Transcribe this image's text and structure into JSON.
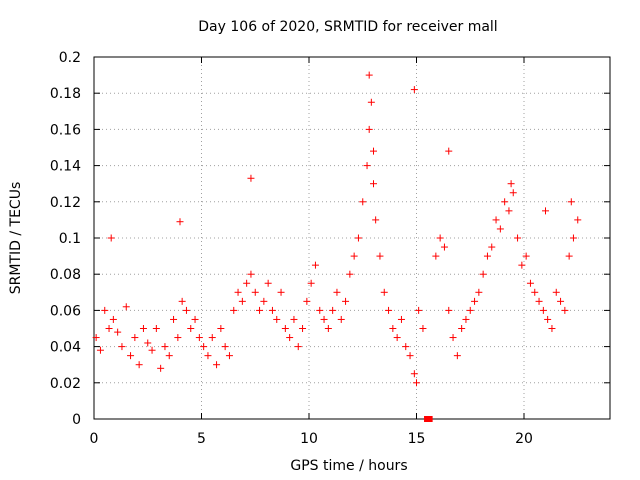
{
  "chart_data": {
    "type": "scatter",
    "title": "Day 106 of 2020, SRMTID for receiver mall",
    "xlabel": "GPS time / hours",
    "ylabel": "SRMTID / TECUs",
    "xlim": [
      0,
      24
    ],
    "ylim": [
      0,
      0.2
    ],
    "x_ticks": [
      0,
      5,
      10,
      15,
      20
    ],
    "x_tick_labels": [
      "0",
      "5",
      "10",
      "15",
      "20"
    ],
    "y_ticks": [
      0,
      0.02,
      0.04,
      0.06,
      0.08,
      0.1,
      0.12,
      0.14,
      0.16,
      0.18,
      0.2
    ],
    "y_tick_labels": [
      "0",
      "0.02",
      "0.04",
      "0.06",
      "0.08",
      "0.1",
      "0.12",
      "0.14",
      "0.16",
      "0.18",
      "0.2"
    ],
    "grid": true,
    "marker": "+",
    "series_color": "#ff0000",
    "zero_segment": {
      "x_start": 15.35,
      "x_end": 15.75,
      "y": 0
    },
    "series": [
      {
        "name": "SRMTID",
        "x": [
          0.1,
          0.3,
          0.5,
          0.7,
          0.9,
          1.1,
          1.3,
          1.5,
          1.7,
          1.9,
          2.1,
          2.3,
          2.5,
          2.7,
          2.9,
          3.1,
          3.3,
          3.5,
          3.7,
          3.9,
          4.1,
          4.3,
          4.5,
          4.7,
          4.9,
          5.1,
          5.3,
          5.5,
          5.7,
          5.9,
          6.1,
          6.3,
          6.5,
          6.7,
          6.9,
          7.1,
          7.3,
          7.5,
          7.7,
          7.9,
          8.1,
          8.3,
          8.5,
          8.7,
          8.9,
          9.1,
          9.3,
          9.5,
          9.7,
          9.9,
          10.1,
          10.3,
          10.5,
          10.7,
          10.9,
          11.1,
          11.3,
          11.5,
          11.7,
          11.9,
          12.1,
          12.3,
          12.5,
          12.7,
          12.8,
          12.9,
          13.0,
          13.1,
          13.3,
          13.5,
          13.7,
          13.9,
          14.1,
          14.3,
          14.5,
          14.7,
          14.9,
          15.0,
          15.1,
          15.3,
          15.9,
          16.1,
          16.3,
          16.5,
          16.7,
          16.9,
          17.1,
          17.3,
          17.5,
          17.7,
          17.9,
          18.1,
          18.3,
          18.5,
          18.7,
          18.9,
          19.1,
          19.3,
          19.5,
          19.7,
          19.9,
          20.1,
          20.3,
          20.5,
          20.7,
          20.9,
          21.1,
          21.3,
          21.5,
          21.7,
          21.9,
          22.1,
          22.3,
          22.5,
          0.8,
          4.0,
          7.3,
          12.8,
          13.0,
          14.9,
          16.5,
          19.4,
          21.0,
          22.2
        ],
        "y": [
          0.045,
          0.038,
          0.06,
          0.05,
          0.055,
          0.048,
          0.04,
          0.062,
          0.035,
          0.045,
          0.03,
          0.05,
          0.042,
          0.038,
          0.05,
          0.028,
          0.04,
          0.035,
          0.055,
          0.045,
          0.065,
          0.06,
          0.05,
          0.055,
          0.045,
          0.04,
          0.035,
          0.045,
          0.03,
          0.05,
          0.04,
          0.035,
          0.06,
          0.07,
          0.065,
          0.075,
          0.08,
          0.07,
          0.06,
          0.065,
          0.075,
          0.06,
          0.055,
          0.07,
          0.05,
          0.045,
          0.055,
          0.04,
          0.05,
          0.065,
          0.075,
          0.085,
          0.06,
          0.055,
          0.05,
          0.06,
          0.07,
          0.055,
          0.065,
          0.08,
          0.09,
          0.1,
          0.12,
          0.14,
          0.16,
          0.175,
          0.13,
          0.11,
          0.09,
          0.07,
          0.06,
          0.05,
          0.045,
          0.055,
          0.04,
          0.035,
          0.025,
          0.02,
          0.06,
          0.05,
          0.09,
          0.1,
          0.095,
          0.06,
          0.045,
          0.035,
          0.05,
          0.055,
          0.06,
          0.065,
          0.07,
          0.08,
          0.09,
          0.095,
          0.11,
          0.105,
          0.12,
          0.115,
          0.125,
          0.1,
          0.085,
          0.09,
          0.075,
          0.07,
          0.065,
          0.06,
          0.055,
          0.05,
          0.07,
          0.065,
          0.06,
          0.09,
          0.1,
          0.11,
          0.1,
          0.109,
          0.133,
          0.19,
          0.148,
          0.182,
          0.148,
          0.13,
          0.115,
          0.12
        ]
      }
    ]
  }
}
